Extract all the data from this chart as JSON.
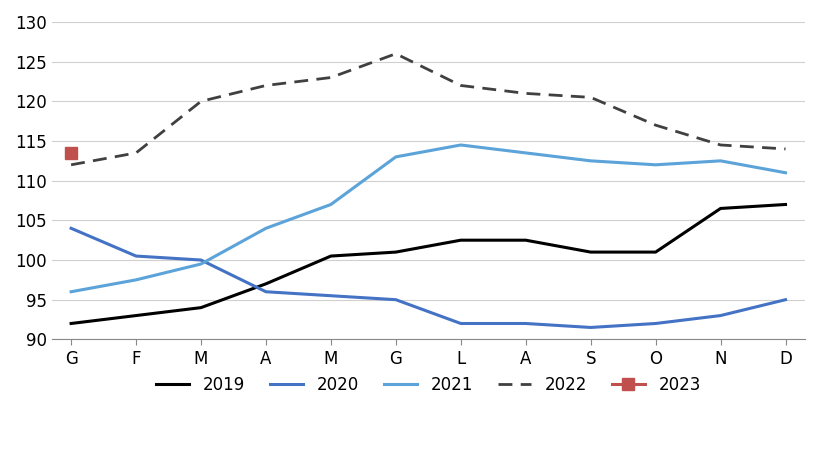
{
  "months": [
    "G",
    "F",
    "M",
    "A",
    "M",
    "G",
    "L",
    "A",
    "S",
    "O",
    "N",
    "D"
  ],
  "series_2019": [
    92,
    93,
    94,
    97,
    100.5,
    101,
    102.5,
    102.5,
    101,
    101,
    106.5,
    107
  ],
  "series_2020": [
    104,
    100.5,
    100,
    96,
    95.5,
    95,
    92,
    92,
    91.5,
    92,
    93,
    95
  ],
  "series_2021": [
    96,
    97.5,
    99.5,
    104,
    107,
    113,
    114.5,
    113.5,
    112.5,
    112,
    112.5,
    111
  ],
  "series_2022": [
    112,
    113.5,
    120,
    122,
    123,
    126,
    122,
    121,
    120.5,
    117,
    114.5,
    114
  ],
  "series_2023": [
    113.5
  ],
  "color_2019": "#000000",
  "color_2020": "#4472C4",
  "color_2021": "#5BA3D9",
  "color_2022": "#404040",
  "color_2023": "#C0504D",
  "ylim": [
    90,
    130
  ],
  "yticks": [
    90,
    95,
    100,
    105,
    110,
    115,
    120,
    125,
    130
  ],
  "background_color": "#ffffff",
  "grid_color": "#d0d0d0",
  "title": ""
}
